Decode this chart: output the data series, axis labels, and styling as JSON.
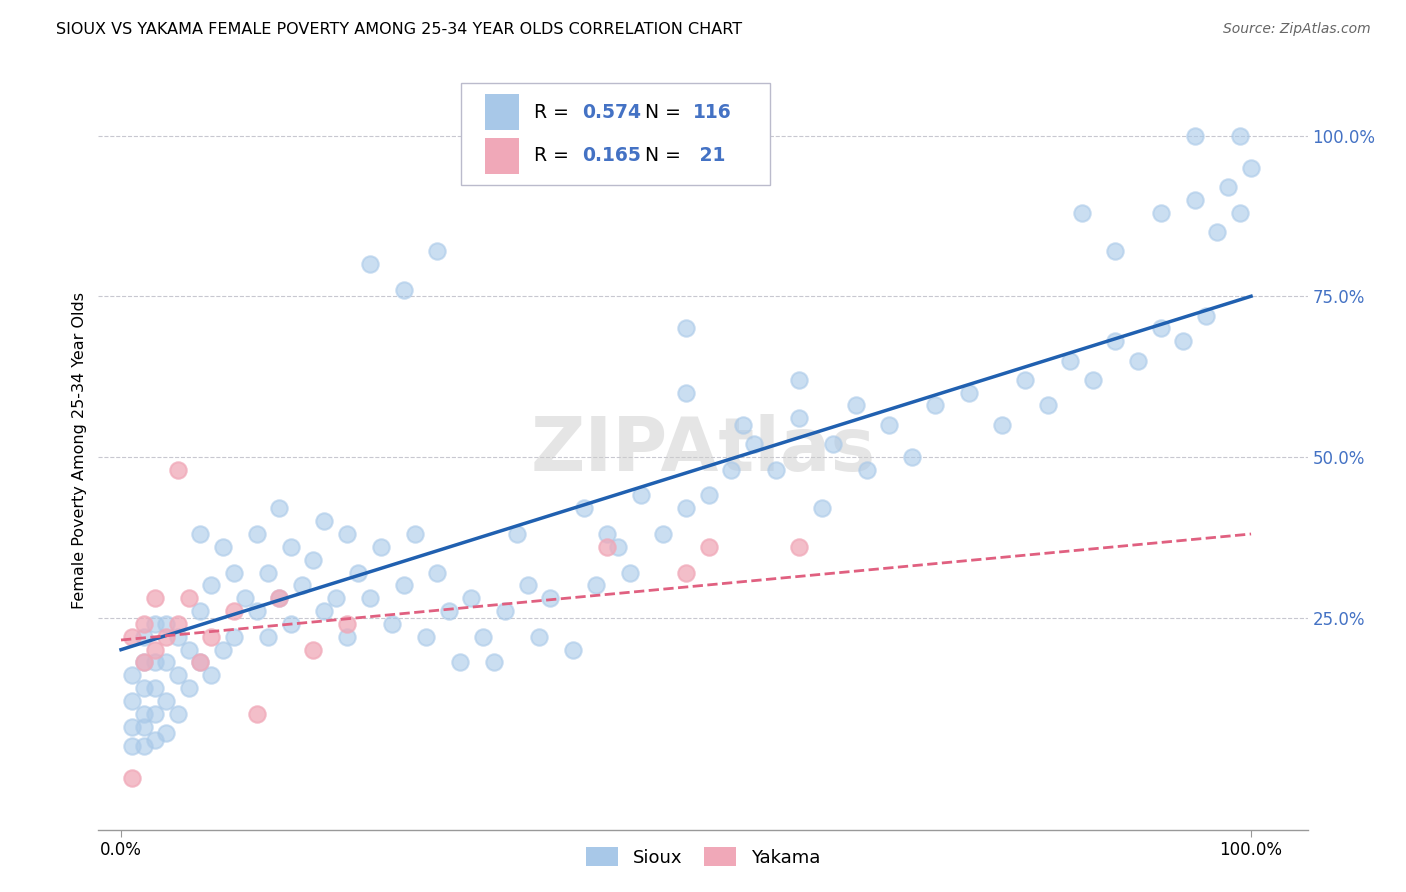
{
  "title": "SIOUX VS YAKAMA FEMALE POVERTY AMONG 25-34 YEAR OLDS CORRELATION CHART",
  "source": "Source: ZipAtlas.com",
  "ylabel": "Female Poverty Among 25-34 Year Olds",
  "legend_sioux_R": "0.574",
  "legend_sioux_N": "116",
  "legend_yakama_R": "0.165",
  "legend_yakama_N": " 21",
  "watermark": "ZIPAtlas",
  "sioux_color": "#A8C8E8",
  "yakama_color": "#F0A8B8",
  "sioux_line_color": "#2060B0",
  "yakama_line_color": "#E06080",
  "sioux_x": [
    0.01,
    0.01,
    0.01,
    0.01,
    0.02,
    0.02,
    0.02,
    0.02,
    0.02,
    0.02,
    0.03,
    0.03,
    0.03,
    0.03,
    0.03,
    0.04,
    0.04,
    0.04,
    0.04,
    0.05,
    0.05,
    0.05,
    0.06,
    0.06,
    0.07,
    0.07,
    0.07,
    0.08,
    0.08,
    0.09,
    0.09,
    0.1,
    0.1,
    0.11,
    0.12,
    0.12,
    0.13,
    0.13,
    0.14,
    0.14,
    0.15,
    0.15,
    0.16,
    0.17,
    0.18,
    0.18,
    0.19,
    0.2,
    0.2,
    0.21,
    0.22,
    0.23,
    0.24,
    0.25,
    0.26,
    0.27,
    0.28,
    0.29,
    0.3,
    0.31,
    0.32,
    0.33,
    0.34,
    0.35,
    0.36,
    0.37,
    0.38,
    0.4,
    0.41,
    0.42,
    0.43,
    0.44,
    0.45,
    0.46,
    0.48,
    0.5,
    0.5,
    0.52,
    0.54,
    0.56,
    0.58,
    0.6,
    0.62,
    0.63,
    0.65,
    0.66,
    0.68,
    0.7,
    0.72,
    0.75,
    0.78,
    0.8,
    0.82,
    0.84,
    0.86,
    0.88,
    0.9,
    0.92,
    0.94,
    0.96,
    0.22,
    0.25,
    0.28,
    0.5,
    0.55,
    0.6,
    0.85,
    0.88,
    0.92,
    0.95,
    0.95,
    0.97,
    0.98,
    0.99,
    0.99,
    1.0
  ],
  "sioux_y": [
    0.05,
    0.08,
    0.12,
    0.16,
    0.05,
    0.08,
    0.1,
    0.14,
    0.18,
    0.22,
    0.06,
    0.1,
    0.14,
    0.18,
    0.24,
    0.07,
    0.12,
    0.18,
    0.24,
    0.1,
    0.16,
    0.22,
    0.14,
    0.2,
    0.18,
    0.26,
    0.38,
    0.16,
    0.3,
    0.2,
    0.36,
    0.22,
    0.32,
    0.28,
    0.26,
    0.38,
    0.22,
    0.32,
    0.28,
    0.42,
    0.24,
    0.36,
    0.3,
    0.34,
    0.26,
    0.4,
    0.28,
    0.22,
    0.38,
    0.32,
    0.28,
    0.36,
    0.24,
    0.3,
    0.38,
    0.22,
    0.32,
    0.26,
    0.18,
    0.28,
    0.22,
    0.18,
    0.26,
    0.38,
    0.3,
    0.22,
    0.28,
    0.2,
    0.42,
    0.3,
    0.38,
    0.36,
    0.32,
    0.44,
    0.38,
    0.42,
    0.7,
    0.44,
    0.48,
    0.52,
    0.48,
    0.56,
    0.42,
    0.52,
    0.58,
    0.48,
    0.55,
    0.5,
    0.58,
    0.6,
    0.55,
    0.62,
    0.58,
    0.65,
    0.62,
    0.68,
    0.65,
    0.7,
    0.68,
    0.72,
    0.8,
    0.76,
    0.82,
    0.6,
    0.55,
    0.62,
    0.88,
    0.82,
    0.88,
    0.9,
    1.0,
    0.85,
    0.92,
    0.88,
    1.0,
    0.95
  ],
  "yakama_x": [
    0.01,
    0.01,
    0.02,
    0.02,
    0.03,
    0.03,
    0.04,
    0.05,
    0.05,
    0.06,
    0.07,
    0.08,
    0.1,
    0.12,
    0.14,
    0.17,
    0.2,
    0.43,
    0.5,
    0.52,
    0.6
  ],
  "yakama_y": [
    0.22,
    0.0,
    0.18,
    0.24,
    0.2,
    0.28,
    0.22,
    0.48,
    0.24,
    0.28,
    0.18,
    0.22,
    0.26,
    0.1,
    0.28,
    0.2,
    0.24,
    0.36,
    0.32,
    0.36,
    0.36
  ],
  "sioux_line_x0": 0.0,
  "sioux_line_y0": 0.2,
  "sioux_line_x1": 1.0,
  "sioux_line_y1": 0.75,
  "yakama_line_x0": 0.0,
  "yakama_line_y0": 0.215,
  "yakama_line_x1": 1.0,
  "yakama_line_y1": 0.38,
  "xlim": [
    -0.02,
    1.05
  ],
  "ylim": [
    -0.08,
    1.1
  ],
  "yticks": [
    0.25,
    0.5,
    0.75,
    1.0
  ],
  "ytick_labels": [
    "25.0%",
    "50.0%",
    "75.0%",
    "100.0%"
  ]
}
